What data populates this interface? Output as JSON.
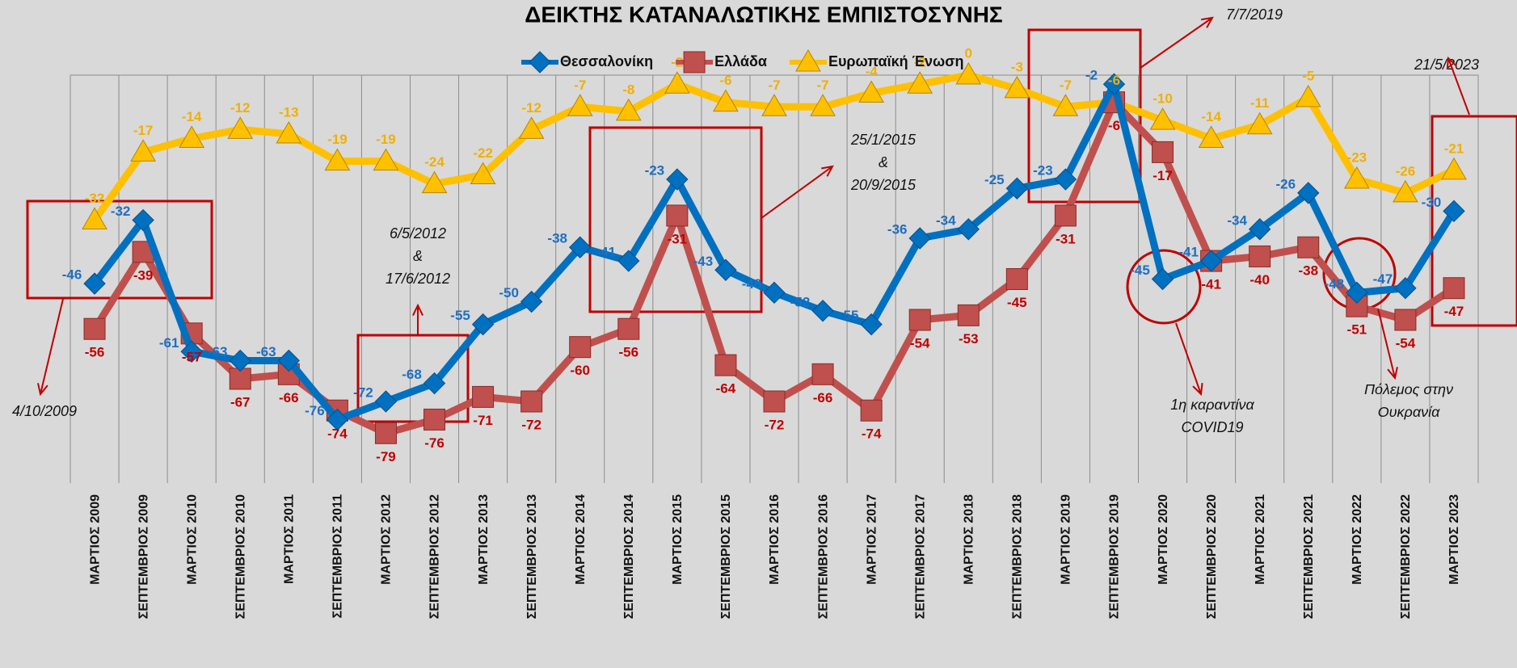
{
  "chart_data": {
    "type": "line",
    "title": "ΔΕΙΚΤΗΣ ΚΑΤΑΝΑΛΩΤΙΚΗΣ ΕΜΠΙΣΤΟΣΥΝΗΣ",
    "categories": [
      "ΜΑΡΤΙΟΣ 2009",
      "ΣΕΠΤΕΜΒΡΙΟΣ 2009",
      "ΜΑΡΤΙΟΣ 2010",
      "ΣΕΠΤΕΜΒΡΙΟΣ 2010",
      "ΜΑΡΤΙΟΣ 2011",
      "ΣΕΠΤΕΜΒΡΙΟΣ 2011",
      "ΜΑΡΤΙΟΣ 2012",
      "ΣΕΠΤΕΜΒΡΙΟΣ 2012",
      "ΜΑΡΤΙΟΣ 2013",
      "ΣΕΠΤΕΜΒΡΙΟΣ 2013",
      "ΜΑΡΤΙΟΣ 2014",
      "ΣΕΠΤΕΜΒΡΙΟΣ 2014",
      "ΜΑΡΤΙΟΣ 2015",
      "ΣΕΠΤΕΜΒΡΙΟΣ 2015",
      "ΜΑΡΤΙΟΣ 2016",
      "ΣΕΠΤΕΜΒΡΙΟΣ 2016",
      "ΜΑΡΤΙΟΣ 2017",
      "ΣΕΠΤΕΜΒΡΙΟΣ 2017",
      "ΜΑΡΤΙΟΣ 2018",
      "ΣΕΠΤΕΜΒΡΙΟΣ 2018",
      "ΜΑΡΤΙΟΣ 2019",
      "ΣΕΠΤΕΜΒΡΙΟΣ 2019",
      "ΜΑΡΤΙΟΣ 2020",
      "ΣΕΠΤΕΜΒΡΙΟΣ 2020",
      "ΜΑΡΤΙΟΣ 2021",
      "ΣΕΠΤΕΜΒΡΙΟΣ 2021",
      "ΜΑΡΤΙΟΣ 2022",
      "ΣΕΠΤΕΜΒΡΙΟΣ 2022",
      "ΜΑΡΤΙΟΣ 2023"
    ],
    "series": [
      {
        "name": "Θεσσαλονίκη",
        "color": "#0070c0",
        "marker": "diamond",
        "values": [
          -46,
          -32,
          -61,
          -63,
          -63,
          -76,
          -72,
          -68,
          -55,
          -50,
          -38,
          -41,
          -23,
          -43,
          -48,
          -52,
          -55,
          -36,
          -34,
          -25,
          -23,
          -2,
          -45,
          -41,
          -34,
          -26,
          -48,
          -47,
          -30
        ]
      },
      {
        "name": "Ελλάδα",
        "color": "#c0504d",
        "marker": "square",
        "values": [
          -56,
          -39,
          -57,
          -67,
          -66,
          -74,
          -79,
          -76,
          -71,
          -72,
          -60,
          -56,
          -31,
          -64,
          -72,
          -66,
          -74,
          -54,
          -53,
          -45,
          -31,
          -6,
          -17,
          -41,
          -40,
          -38,
          -51,
          -54,
          -47
        ]
      },
      {
        "name": "Ευρωπαϊκή Ένωση",
        "color": "#ffc000",
        "marker": "triangle",
        "values": [
          -32,
          -17,
          -14,
          -12,
          -13,
          -19,
          -19,
          -24,
          -22,
          -12,
          -7,
          -8,
          -2,
          -6,
          -7,
          -7,
          -4,
          -2,
          0,
          -3,
          -7,
          -6,
          -10,
          -14,
          -11,
          -5,
          -23,
          -26,
          -21
        ]
      }
    ],
    "ylim": [
      -90,
      0
    ],
    "grid": true,
    "legend": "top",
    "annotations": [
      [
        "4/10/2009"
      ],
      [
        "6/5/2012",
        "&",
        "17/6/2012"
      ],
      [
        "25/1/2015",
        "&",
        "20/9/2015"
      ],
      [
        "7/7/2019"
      ],
      [
        "21/5/2023"
      ],
      [
        "1η καραντίνα",
        "COVID19"
      ],
      [
        "Πόλεμος στην",
        "Ουκρανία"
      ]
    ]
  }
}
